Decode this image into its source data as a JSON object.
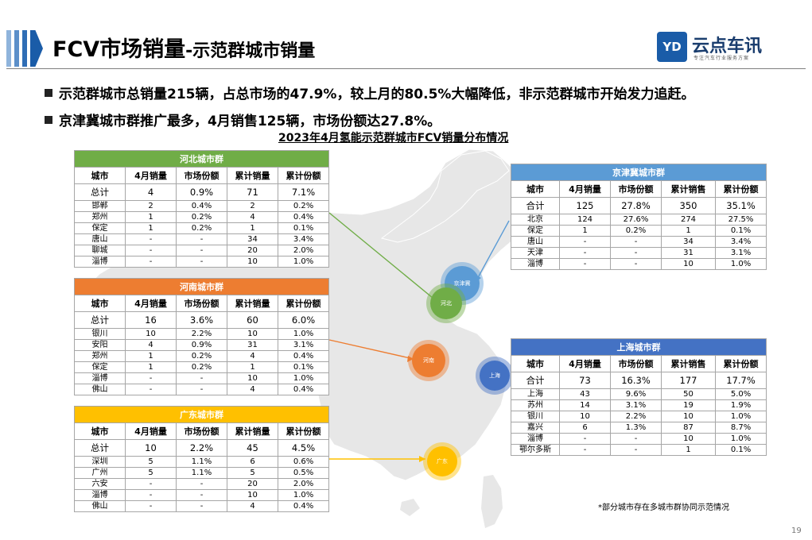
{
  "title": {
    "main": "FCV市场销量",
    "sub": "-示范群城市销量"
  },
  "logo": {
    "mark": "YD",
    "name": "云点车讯",
    "tagline": "专注汽车行业服务方案"
  },
  "bullets": [
    "示范群城市总销量215辆，占总市场的47.9%，较上月的80.5%大幅降低，非示范群城市开始发力追赶。",
    "京津冀城市群推广最多，4月销售125辆，市场份额达27.8%。"
  ],
  "chart_title": "2023年4月氢能示范群城市FCV销量分布情况",
  "colors": {
    "hebei": "#70ad47",
    "henan": "#ed7d31",
    "guangdong": "#ffc000",
    "jingjinji": "#5b9bd5",
    "shanghai": "#4472c4",
    "map": "#e7e7e7"
  },
  "tables": {
    "hebei": {
      "name": "河北城市群",
      "columns": [
        "城市",
        "4月销量",
        "市场份额",
        "累计销量",
        "累计份额"
      ],
      "total": [
        "总计",
        "4",
        "0.9%",
        "71",
        "7.1%"
      ],
      "rows": [
        [
          "邯郸",
          "2",
          "0.4%",
          "2",
          "0.2%"
        ],
        [
          "郑州",
          "1",
          "0.2%",
          "4",
          "0.4%"
        ],
        [
          "保定",
          "1",
          "0.2%",
          "1",
          "0.1%"
        ],
        [
          "唐山",
          "-",
          "-",
          "34",
          "3.4%"
        ],
        [
          "聊城",
          "-",
          "-",
          "20",
          "2.0%"
        ],
        [
          "淄博",
          "-",
          "-",
          "10",
          "1.0%"
        ]
      ]
    },
    "henan": {
      "name": "河南城市群",
      "columns": [
        "城市",
        "4月销量",
        "市场份额",
        "累计销量",
        "累计份额"
      ],
      "total": [
        "总计",
        "16",
        "3.6%",
        "60",
        "6.0%"
      ],
      "rows": [
        [
          "银川",
          "10",
          "2.2%",
          "10",
          "1.0%"
        ],
        [
          "安阳",
          "4",
          "0.9%",
          "31",
          "3.1%"
        ],
        [
          "郑州",
          "1",
          "0.2%",
          "4",
          "0.4%"
        ],
        [
          "保定",
          "1",
          "0.2%",
          "1",
          "0.1%"
        ],
        [
          "淄博",
          "-",
          "-",
          "10",
          "1.0%"
        ],
        [
          "佛山",
          "-",
          "-",
          "4",
          "0.4%"
        ]
      ]
    },
    "guangdong": {
      "name": "广东城市群",
      "columns": [
        "城市",
        "4月销量",
        "市场份额",
        "累计销量",
        "累计份额"
      ],
      "total": [
        "总计",
        "10",
        "2.2%",
        "45",
        "4.5%"
      ],
      "rows": [
        [
          "深圳",
          "5",
          "1.1%",
          "6",
          "0.6%"
        ],
        [
          "广州",
          "5",
          "1.1%",
          "5",
          "0.5%"
        ],
        [
          "六安",
          "-",
          "-",
          "20",
          "2.0%"
        ],
        [
          "淄博",
          "-",
          "-",
          "10",
          "1.0%"
        ],
        [
          "佛山",
          "-",
          "-",
          "4",
          "0.4%"
        ]
      ]
    },
    "jingjinji": {
      "name": "京津冀城市群",
      "columns": [
        "城市",
        "4月销量",
        "市场份额",
        "累计销售",
        "累计份额"
      ],
      "total": [
        "合计",
        "125",
        "27.8%",
        "350",
        "35.1%"
      ],
      "rows": [
        [
          "北京",
          "124",
          "27.6%",
          "274",
          "27.5%"
        ],
        [
          "保定",
          "1",
          "0.2%",
          "1",
          "0.1%"
        ],
        [
          "唐山",
          "-",
          "-",
          "34",
          "3.4%"
        ],
        [
          "天津",
          "-",
          "-",
          "31",
          "3.1%"
        ],
        [
          "淄博",
          "-",
          "-",
          "10",
          "1.0%"
        ]
      ]
    },
    "shanghai": {
      "name": "上海城市群",
      "columns": [
        "城市",
        "4月销量",
        "市场份额",
        "累计销售",
        "累计份额"
      ],
      "total": [
        "合计",
        "73",
        "16.3%",
        "177",
        "17.7%"
      ],
      "rows": [
        [
          "上海",
          "43",
          "9.6%",
          "50",
          "5.0%"
        ],
        [
          "苏州",
          "14",
          "3.1%",
          "19",
          "1.9%"
        ],
        [
          "银川",
          "10",
          "2.2%",
          "10",
          "1.0%"
        ],
        [
          "嘉兴",
          "6",
          "1.3%",
          "87",
          "8.7%"
        ],
        [
          "淄博",
          "-",
          "-",
          "10",
          "1.0%"
        ],
        [
          "鄂尔多斯",
          "-",
          "-",
          "1",
          "0.1%"
        ]
      ]
    }
  },
  "bubbles": {
    "jingjinji": "京津冀",
    "hebei": "河北",
    "henan": "河南",
    "shanghai": "上海",
    "guangdong": "广东"
  },
  "footnote": "*部分城市存在多城市群协同示范情况",
  "page_number": "19"
}
